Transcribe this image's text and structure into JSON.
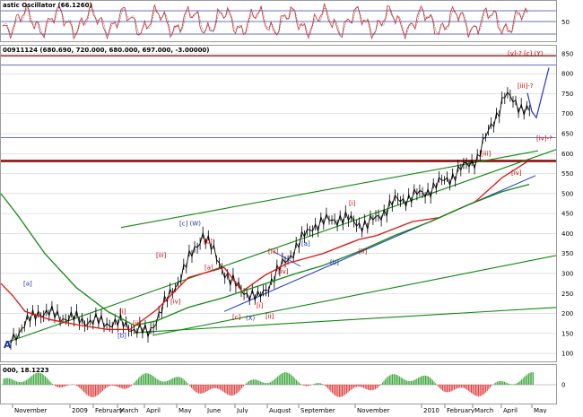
{
  "stochastic": {
    "header": "astic Oscillator (66.1260)",
    "y_ticks": [
      50
    ]
  },
  "price_panel": {
    "header": "00911124 (680.690, 720.000, 680.000, 697.000, -3.00000)",
    "corner_label": "A",
    "y_ticks": [
      100,
      150,
      200,
      250,
      300,
      350,
      400,
      450,
      500,
      550,
      600,
      650,
      700,
      750,
      800,
      850
    ]
  },
  "macd": {
    "header": "000, 18.1223",
    "y_ticks": [
      0
    ]
  },
  "colors": {
    "price_bars": "#000000",
    "ma_red": "#dd1111",
    "ma_green": "#118811",
    "trend_green": "#118811",
    "trend_blue": "#2233cc",
    "level_blue": "#3344aa",
    "level_brown": "#8b1a1a",
    "stoch_line": "#d42a2a"
  },
  "chart_data": {
    "type": "line",
    "x_axis_months": [
      "November",
      "2009",
      "February",
      "March",
      "April",
      "May",
      "June",
      "July",
      "August",
      "September",
      "November",
      "2010",
      "February",
      "March",
      "April",
      "May"
    ],
    "ylim": [
      80,
      870
    ],
    "horizontal_levels": [
      {
        "value": 822,
        "color": "blue"
      },
      {
        "value": 845,
        "color": "brown"
      },
      {
        "value": 640,
        "color": "blue"
      },
      {
        "value": 580,
        "color": "brown"
      },
      {
        "value": 583,
        "color": "brown"
      }
    ],
    "price_path_monthly": [
      {
        "month": "Oct-08",
        "value": 135
      },
      {
        "month": "Nov-08",
        "value": 205
      },
      {
        "month": "Dec-08",
        "value": 190
      },
      {
        "month": "Jan-09",
        "value": 180
      },
      {
        "month": "Feb-09",
        "value": 175
      },
      {
        "month": "Mar-09",
        "value": 150
      },
      {
        "month": "Apr-09",
        "value": 270
      },
      {
        "month": "May-09",
        "value": 400
      },
      {
        "month": "Jun-09",
        "value": 280
      },
      {
        "month": "Jul-09",
        "value": 235
      },
      {
        "month": "Aug-09",
        "value": 330
      },
      {
        "month": "Sep-09",
        "value": 420
      },
      {
        "month": "Oct-09",
        "value": 440
      },
      {
        "month": "Nov-09",
        "value": 420
      },
      {
        "month": "Dec-09",
        "value": 480
      },
      {
        "month": "Jan-10",
        "value": 500
      },
      {
        "month": "Feb-10",
        "value": 540
      },
      {
        "month": "Mar-10",
        "value": 590
      },
      {
        "month": "Apr-10",
        "value": 745
      },
      {
        "month": "late-Apr-10",
        "value": 700
      }
    ],
    "wave_labels": [
      {
        "text": "[a]",
        "color": "blue",
        "value": 270
      },
      {
        "text": "[b]",
        "color": "blue",
        "value": 140
      },
      {
        "text": "[i]",
        "color": "red",
        "value": 200
      },
      {
        "text": "[ii]",
        "color": "red",
        "value": 170
      },
      {
        "text": "[iii]",
        "color": "red",
        "value": 340
      },
      {
        "text": "[iv]",
        "color": "red",
        "value": 225
      },
      {
        "text": "[c] (W)",
        "color": "blue",
        "value": 420
      },
      {
        "text": "[a]",
        "color": "red",
        "value": 310
      },
      {
        "text": "[b]",
        "color": "red",
        "value": 375
      },
      {
        "text": "[c]",
        "color": "red",
        "value": 185
      },
      {
        "text": "(X)",
        "color": "blue",
        "value": 183
      },
      {
        "text": "[i]",
        "color": "red",
        "value": 215
      },
      {
        "text": "[ii]",
        "color": "red",
        "value": 188
      },
      {
        "text": "[iii]",
        "color": "red",
        "value": 350
      },
      {
        "text": "[iv]",
        "color": "red",
        "value": 300
      },
      {
        "text": "[a]",
        "color": "blue",
        "value": 370
      },
      {
        "text": "[b]",
        "color": "blue",
        "value": 322
      },
      {
        "text": "[i]",
        "color": "red",
        "value": 470
      },
      {
        "text": "[ii]",
        "color": "red",
        "value": 350
      },
      {
        "text": "[iii]",
        "color": "red",
        "value": 595
      },
      {
        "text": "[iv]",
        "color": "red",
        "value": 547
      },
      {
        "text": "[iii]-?",
        "color": "red",
        "value": 765
      },
      {
        "text": "[iv]-?",
        "color": "red",
        "value": 633
      },
      {
        "text": "[v]-? [c] (Y)",
        "color": "red",
        "value": 845
      }
    ]
  }
}
